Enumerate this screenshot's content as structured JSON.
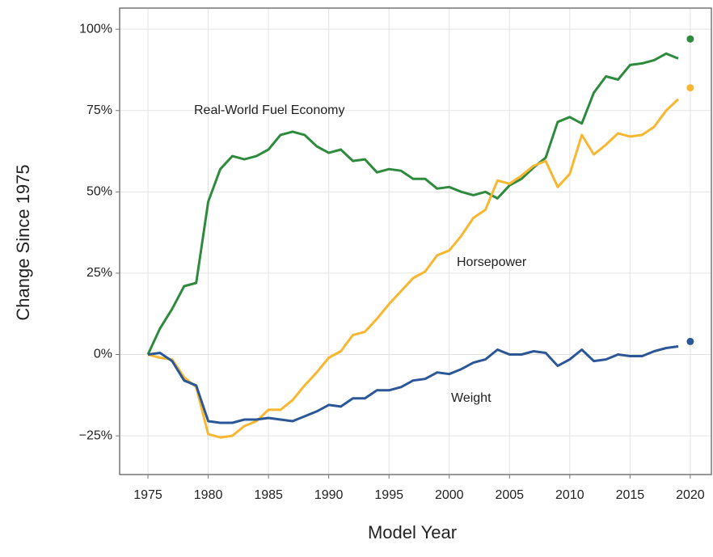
{
  "chart_data": {
    "type": "line",
    "x_label": "Model Year",
    "y_label": "Change Since 1975",
    "x": [
      1975,
      1976,
      1977,
      1978,
      1979,
      1980,
      1981,
      1982,
      1983,
      1984,
      1985,
      1986,
      1987,
      1988,
      1989,
      1990,
      1991,
      1992,
      1993,
      1994,
      1995,
      1996,
      1997,
      1998,
      1999,
      2000,
      2001,
      2002,
      2003,
      2004,
      2005,
      2006,
      2007,
      2008,
      2009,
      2010,
      2011,
      2012,
      2013,
      2014,
      2015,
      2016,
      2017,
      2018,
      2019
    ],
    "series": [
      {
        "name": "Real-World Fuel Economy",
        "color": "#2e8b3e",
        "values": [
          0,
          8,
          14,
          21,
          22,
          47,
          57,
          61,
          60,
          61,
          63,
          67.5,
          68.5,
          67.5,
          64,
          62,
          63,
          59.5,
          60,
          56,
          57,
          56.5,
          54,
          54,
          51,
          51.5,
          50,
          49,
          50,
          48,
          52,
          54,
          57.5,
          60.5,
          71.5,
          73,
          71,
          80.5,
          85.5,
          84.5,
          89,
          89.5,
          90.5,
          92.5,
          91
        ],
        "extra_point": {
          "x": 2020,
          "value": 97
        }
      },
      {
        "name": "Horsepower",
        "color": "#f7b731",
        "values": [
          0,
          -1,
          -1.5,
          -7,
          -10,
          -24.5,
          -25.5,
          -25,
          -22,
          -20.5,
          -17,
          -17,
          -14,
          -9.5,
          -5.5,
          -1,
          1,
          6,
          7,
          11,
          15.5,
          19.5,
          23.5,
          25.5,
          30.5,
          32,
          36.5,
          42,
          44.5,
          53.5,
          52.5,
          55,
          58,
          59.5,
          51.5,
          55.5,
          67.5,
          61.5,
          64.5,
          68,
          67,
          67.5,
          70,
          75,
          78.5
        ],
        "extra_point": {
          "x": 2020,
          "value": 82
        }
      },
      {
        "name": "Weight",
        "color": "#2b5797",
        "values": [
          0,
          0.5,
          -2,
          -8,
          -9.5,
          -20.5,
          -21,
          -21,
          -20,
          -20,
          -19.5,
          -20,
          -20.5,
          -19,
          -17.5,
          -15.5,
          -16,
          -13.5,
          -13.5,
          -11,
          -11,
          -10,
          -8,
          -7.5,
          -5.5,
          -6,
          -4.5,
          -2.5,
          -1.5,
          1.5,
          0,
          0,
          1,
          0.5,
          -3.5,
          -1.5,
          1.5,
          -2,
          -1.5,
          0,
          -0.5,
          -0.5,
          1,
          2,
          2.5
        ],
        "extra_point": {
          "x": 2020,
          "value": 4
        }
      }
    ],
    "xlim": [
      1972.65,
      2021.75
    ],
    "ylim": [
      -36.9,
      106.5
    ],
    "xticks": [
      1975,
      1980,
      1985,
      1990,
      1995,
      2000,
      2005,
      2010,
      2015,
      2020
    ],
    "yticks": [
      {
        "value": -25,
        "label": "−25%"
      },
      {
        "value": 0,
        "label": "0%"
      },
      {
        "value": 25,
        "label": "25%"
      },
      {
        "value": 50,
        "label": "50%"
      },
      {
        "value": 75,
        "label": "75%"
      },
      {
        "value": 100,
        "label": "100%"
      }
    ],
    "grid": true,
    "legend": "inline"
  }
}
